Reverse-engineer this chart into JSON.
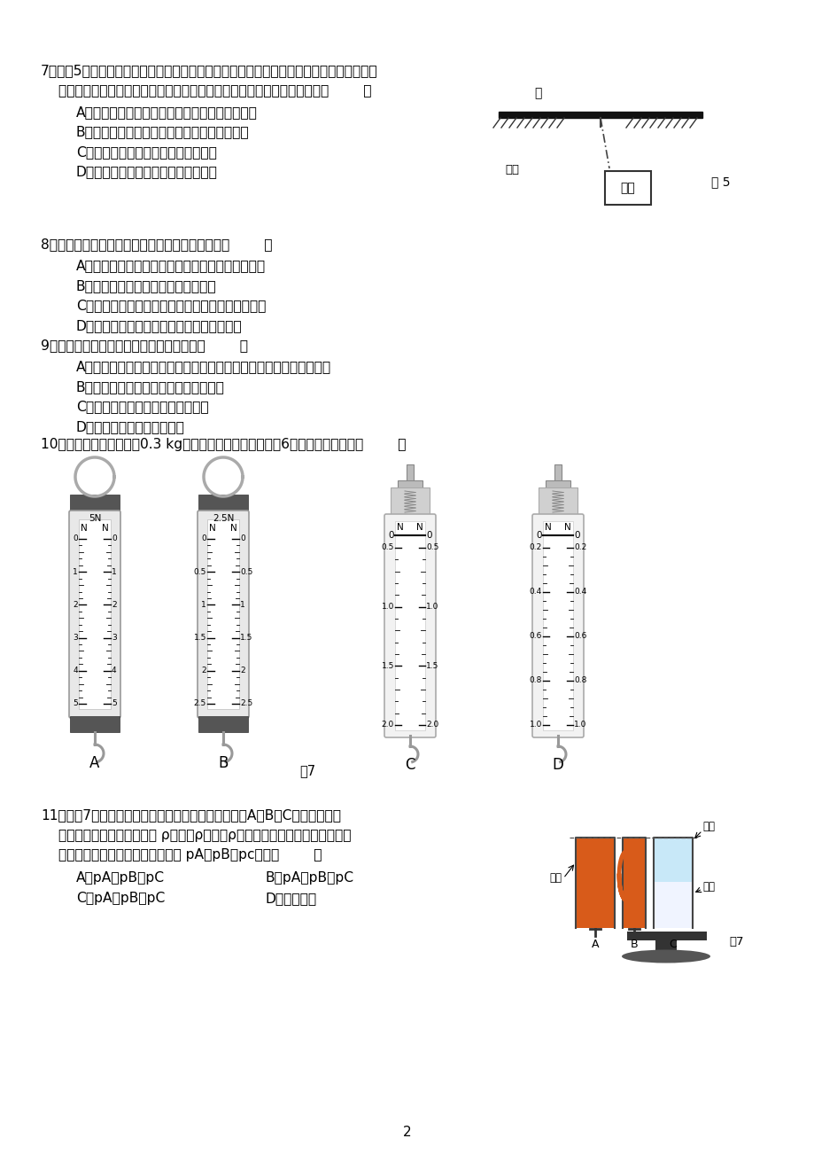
{
  "page_number": "2",
  "background": "#ffffff",
  "q7_line1": "7．如图5所示，一书包挂在一根轻质硬棒（棒的重量忽略不计）的中间，硬棒左右两端分别",
  "q7_line2": "架在两张桌面上，此时硬棒、书包处于静止状态。以下属于二力平衡的是（        ）",
  "q7_A": "A．左边桌面对棒左端的支持力和书包受到的重力",
  "q7_B": "B．左边桌面对棒左端的支持力和绳对棒的拉力",
  "q7_C": "C．绳对书包的拉力和书包受到的重力",
  "q7_D": "D．绳对书包的拉力和书包对绳的拉力",
  "q8_line1": "8．下列有关自行车结构及使用的说法中正确的是（        ）",
  "q8_A": "A．把手处刻有花纹是为了增大接触面积减小摩擦力",
  "q8_B": "B．自行车转弯时受到的各力相互平衡",
  "q8_C": "C．下坡时自行车速度越来越大是由于阻力越来越小",
  "q8_D": "D．适当增大座垫面积能减小对人臀部的压强",
  "q9_line1": "9．下列现象中，为防范惯性带来危害的是（        ）",
  "q9_A": "A．自行车沿平路匀速前进时，不再踩脚蹬，车还能继续前行一段距离",
  "q9_B": "B．跳远运动员快速助跑后，能跳得更远",
  "q9_C": "C．通过拍打窗帘清除它上面的浮尘",
  "q9_D": "D．小车前排乘客使用安全带",
  "q10_line1": "10．一个苹果的质量约为0.3 kg，要测量该苹果的重力，图6中最适合的器材是（        ）",
  "q11_line1": "11．如图7所示，三个底部用阀门关闭而不相通的容器A、B、C中分别装有盐",
  "q11_line2": "水、清水和酒精（已知密度 ρ盐水＞ρ清水＞ρ酒精），三个容器中液面相平，",
  "q11_line3": "容器底部受到各液体的压强分别为 pA、pB、pc，则（        ）",
  "q11_A": "A．pA＞pB＞pC",
  "q11_B": "B．pA＜pB＜pC",
  "q11_C": "C．pA＝pB＝pC",
  "q11_D": "D．无法确定",
  "fig5_zuo": "左",
  "fig5_xisheng": "细绳",
  "fig5_shubao": "书包",
  "fig5_label": "图 5",
  "fig7_label_between": "图7",
  "fig7_yanshui": "盐水",
  "fig7_qingshui": "清水",
  "fig7_jiujing": "酒精",
  "fig7_label": "图7"
}
